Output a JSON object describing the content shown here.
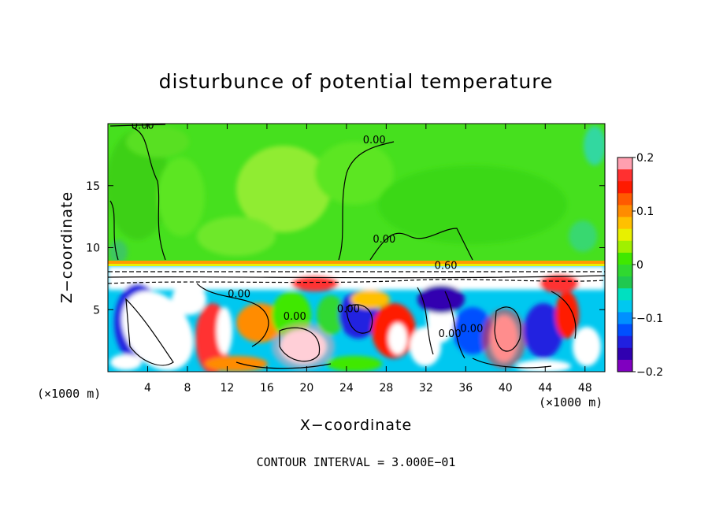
{
  "chart_data": {
    "type": "heatmap",
    "title": "disturbunce of potential temperature",
    "xlabel": "X−coordinate",
    "ylabel": "Z−coordinate",
    "x_unit_label_left": "(×1000 m)",
    "x_unit_label_right": "(×1000 m)",
    "footer": "CONTOUR INTERVAL = 3.000E−01",
    "xlim": [
      0,
      50
    ],
    "ylim": [
      0,
      20
    ],
    "x_ticks": [
      4,
      8,
      12,
      16,
      20,
      24,
      28,
      32,
      36,
      40,
      44,
      48
    ],
    "x_tick_labels": [
      "4",
      "8",
      "12",
      "16",
      "20",
      "24",
      "28",
      "32",
      "36",
      "40",
      "44",
      "48"
    ],
    "y_ticks": [
      5,
      10,
      15
    ],
    "y_tick_labels": [
      "5",
      "10",
      "15"
    ],
    "colorbar": {
      "min": -0.2,
      "max": 0.2,
      "ticks": [
        0.2,
        0.1,
        0,
        -0.1,
        -0.2
      ],
      "tick_labels": [
        "0.2",
        "0.1",
        "0",
        "−0.1",
        "−0.2"
      ],
      "colors": [
        "#ff9fb0",
        "#ff3030",
        "#ff1a00",
        "#ff5a00",
        "#ff8c00",
        "#ffc000",
        "#e8f000",
        "#a0f000",
        "#40e800",
        "#30d830",
        "#20c850",
        "#00e0c0",
        "#00c8f0",
        "#0090ff",
        "#0050ff",
        "#2020e0",
        "#3000b0",
        "#8000c0"
      ]
    },
    "contour_labels": [
      {
        "text": "0.00",
        "x": 3.5,
        "z": 19.6
      },
      {
        "text": "0.00",
        "x": 26.8,
        "z": 18.4
      },
      {
        "text": "0.00",
        "x": 27.8,
        "z": 10.4
      },
      {
        "text": "0.60",
        "x": 34.0,
        "z": 8.3
      },
      {
        "text": "0.00",
        "x": 13.2,
        "z": 6.0
      },
      {
        "text": "0.00",
        "x": 18.8,
        "z": 4.2
      },
      {
        "text": "0.00",
        "x": 24.2,
        "z": 4.8
      },
      {
        "text": "0.00",
        "x": 34.4,
        "z": 2.8
      },
      {
        "text": "0.00",
        "x": 36.6,
        "z": 3.2
      }
    ]
  }
}
